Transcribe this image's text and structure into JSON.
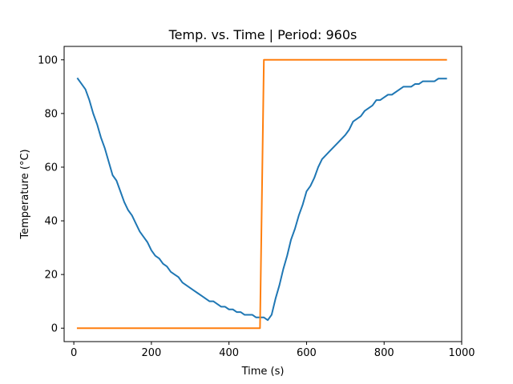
{
  "chart_data": {
    "type": "line",
    "title": "Temp. vs. Time | Period: 960s",
    "xlabel": "Time (s)",
    "ylabel": "Temperature (°C)",
    "xlim": [
      -25,
      1000
    ],
    "ylim": [
      -5,
      105
    ],
    "xticks": [
      0,
      200,
      400,
      600,
      800,
      1000
    ],
    "yticks": [
      0,
      20,
      40,
      60,
      80,
      100
    ],
    "grid": false,
    "legend": "none",
    "series": [
      {
        "color": "#1f77b4",
        "points": [
          [
            10,
            93
          ],
          [
            20,
            91
          ],
          [
            30,
            89
          ],
          [
            40,
            85
          ],
          [
            50,
            80
          ],
          [
            60,
            76
          ],
          [
            70,
            71
          ],
          [
            80,
            67
          ],
          [
            90,
            62
          ],
          [
            100,
            57
          ],
          [
            110,
            55
          ],
          [
            120,
            51
          ],
          [
            130,
            47
          ],
          [
            140,
            44
          ],
          [
            150,
            42
          ],
          [
            160,
            39
          ],
          [
            170,
            36
          ],
          [
            180,
            34
          ],
          [
            190,
            32
          ],
          [
            200,
            29
          ],
          [
            210,
            27
          ],
          [
            220,
            26
          ],
          [
            230,
            24
          ],
          [
            240,
            23
          ],
          [
            250,
            21
          ],
          [
            260,
            20
          ],
          [
            270,
            19
          ],
          [
            280,
            17
          ],
          [
            290,
            16
          ],
          [
            300,
            15
          ],
          [
            310,
            14
          ],
          [
            320,
            13
          ],
          [
            330,
            12
          ],
          [
            340,
            11
          ],
          [
            350,
            10
          ],
          [
            360,
            10
          ],
          [
            370,
            9
          ],
          [
            380,
            8
          ],
          [
            390,
            8
          ],
          [
            400,
            7
          ],
          [
            410,
            7
          ],
          [
            420,
            6
          ],
          [
            430,
            6
          ],
          [
            440,
            5
          ],
          [
            450,
            5
          ],
          [
            460,
            5
          ],
          [
            470,
            4
          ],
          [
            480,
            4
          ],
          [
            490,
            4
          ],
          [
            500,
            3
          ],
          [
            510,
            5
          ],
          [
            520,
            11
          ],
          [
            530,
            16
          ],
          [
            540,
            22
          ],
          [
            550,
            27
          ],
          [
            560,
            33
          ],
          [
            570,
            37
          ],
          [
            580,
            42
          ],
          [
            590,
            46
          ],
          [
            600,
            51
          ],
          [
            610,
            53
          ],
          [
            620,
            56
          ],
          [
            630,
            60
          ],
          [
            640,
            63
          ],
          [
            660,
            66
          ],
          [
            680,
            69
          ],
          [
            700,
            72
          ],
          [
            710,
            74
          ],
          [
            720,
            77
          ],
          [
            740,
            79
          ],
          [
            750,
            81
          ],
          [
            770,
            83
          ],
          [
            780,
            85
          ],
          [
            790,
            85
          ],
          [
            800,
            86
          ],
          [
            810,
            87
          ],
          [
            820,
            87
          ],
          [
            840,
            89
          ],
          [
            850,
            90
          ],
          [
            860,
            90
          ],
          [
            870,
            90
          ],
          [
            880,
            91
          ],
          [
            890,
            91
          ],
          [
            900,
            92
          ],
          [
            910,
            92
          ],
          [
            920,
            92
          ],
          [
            930,
            92
          ],
          [
            940,
            93
          ],
          [
            950,
            93
          ],
          [
            960,
            93
          ]
        ]
      },
      {
        "color": "#ff7f0e",
        "points": [
          [
            10,
            0
          ],
          [
            480,
            0
          ],
          [
            490,
            100
          ],
          [
            960,
            100
          ]
        ]
      }
    ]
  }
}
